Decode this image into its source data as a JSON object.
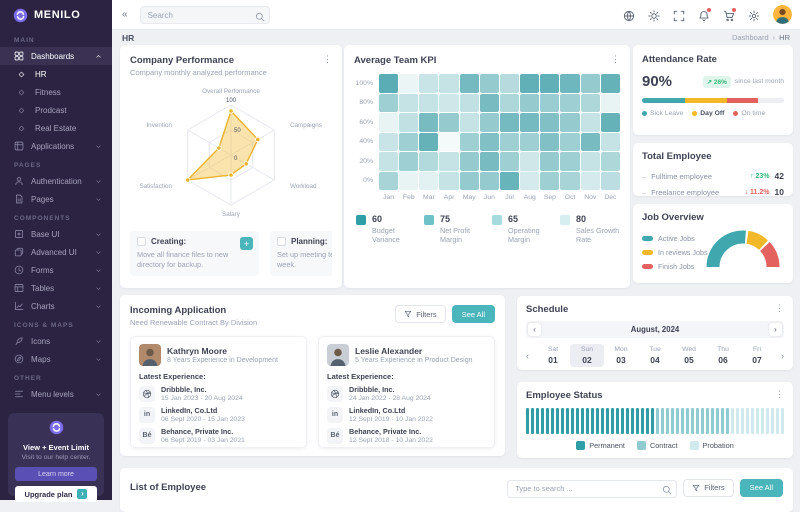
{
  "brand": {
    "name": "MENILO"
  },
  "topbar": {
    "collapse_icon": "«",
    "search_placeholder": "Search",
    "icons": [
      {
        "name": "language-icon",
        "badge": false
      },
      {
        "name": "theme-sun-icon",
        "badge": false
      },
      {
        "name": "fullscreen-icon",
        "badge": false
      },
      {
        "name": "notifications-bell-icon",
        "badge": true
      },
      {
        "name": "cart-icon",
        "badge": true
      },
      {
        "name": "settings-gear-icon",
        "badge": false
      }
    ]
  },
  "breadcrumb": {
    "page_title": "HR",
    "trail": [
      "Dashboard",
      "HR"
    ]
  },
  "sidebar": {
    "sections": [
      {
        "title": "MAIN",
        "items": [
          {
            "label": "Dashboards",
            "icon": "grid-icon",
            "active": true,
            "chevron": "up"
          },
          {
            "label": "HR",
            "icon": "diamond-icon",
            "sub": true,
            "active": true
          },
          {
            "label": "Fitness",
            "icon": "diamond-icon",
            "sub": true
          },
          {
            "label": "Prodcast",
            "icon": "diamond-icon",
            "sub": true
          },
          {
            "label": "Real Estate",
            "icon": "diamond-icon",
            "sub": true
          },
          {
            "label": "Applications",
            "icon": "apps-icon",
            "chevron": "down"
          }
        ]
      },
      {
        "title": "PAGES",
        "items": [
          {
            "label": "Authentication",
            "icon": "user-icon",
            "chevron": "down"
          },
          {
            "label": "Pages",
            "icon": "file-icon",
            "chevron": "down"
          }
        ]
      },
      {
        "title": "COMPONENTS",
        "items": [
          {
            "label": "Base UI",
            "icon": "box-icon",
            "chevron": "down"
          },
          {
            "label": "Advanced UI",
            "icon": "layers-icon",
            "chevron": "down"
          },
          {
            "label": "Forms",
            "icon": "clock-icon",
            "chevron": "down"
          },
          {
            "label": "Tables",
            "icon": "table-icon",
            "chevron": "down"
          },
          {
            "label": "Charts",
            "icon": "chart-icon",
            "chevron": "down"
          }
        ]
      },
      {
        "title": "ICONS & MAPS",
        "items": [
          {
            "label": "Icons",
            "icon": "feather-icon",
            "chevron": "down"
          },
          {
            "label": "Maps",
            "icon": "compass-icon",
            "chevron": "down"
          }
        ]
      },
      {
        "title": "OTHER",
        "items": [
          {
            "label": "Menu levels",
            "icon": "menu-levels-icon",
            "chevron": "down"
          }
        ]
      }
    ],
    "promo": {
      "title": "View + Event Limit",
      "subtitle": "Visit to our help center.",
      "learn_more": "Learn more",
      "upgrade": "Upgrade plan"
    }
  },
  "performance": {
    "title": "Company Performance",
    "subtitle": "Company monthly analyzed performance",
    "chart": {
      "type": "radar",
      "axes": [
        "Overall Performance",
        "Campaigns",
        "Workload",
        "Salary",
        "Satisfaction",
        "Invention"
      ],
      "values": [
        88,
        62,
        35,
        40,
        100,
        28
      ],
      "max": 100,
      "scale_labels": [
        "100",
        "50",
        "0"
      ],
      "line_color": "#eab42c",
      "fill_color": "rgba(246,194,74,0.45)"
    },
    "tasks": [
      {
        "label": "Creating:",
        "text": "Move all finance files to new directory for backup.",
        "has_add": true
      },
      {
        "label": "Planning:",
        "text": "Set up meeting team for next week.",
        "has_add": false
      }
    ]
  },
  "team_kpi": {
    "title": "Average Team KPI",
    "chart": {
      "type": "heatmap",
      "x": [
        "Jan",
        "Feb",
        "Mar",
        "Apr",
        "May",
        "Jun",
        "Jul",
        "Aug",
        "Sep",
        "Oct",
        "Nov",
        "Dec"
      ],
      "y": [
        "100%",
        "80%",
        "60%",
        "40%",
        "20%",
        "0%"
      ],
      "base_color": "62,159,168",
      "values": [
        [
          0.85,
          0.1,
          0.28,
          0.3,
          0.72,
          0.55,
          0.38,
          0.82,
          0.82,
          0.75,
          0.55,
          0.8
        ],
        [
          0.5,
          0.3,
          0.3,
          0.25,
          0.32,
          0.7,
          0.42,
          0.55,
          0.52,
          0.5,
          0.42,
          0.12
        ],
        [
          0.12,
          0.32,
          0.7,
          0.55,
          0.3,
          0.55,
          0.72,
          0.72,
          0.65,
          0.55,
          0.3,
          0.8
        ],
        [
          0.28,
          0.5,
          0.8,
          0.06,
          0.5,
          0.65,
          0.5,
          0.5,
          0.65,
          0.5,
          0.7,
          0.3
        ],
        [
          0.3,
          0.5,
          0.4,
          0.3,
          0.55,
          0.7,
          0.5,
          0.25,
          0.55,
          0.5,
          0.3,
          0.42
        ],
        [
          0.45,
          0.12,
          0.15,
          0.3,
          0.55,
          0.55,
          0.78,
          0.22,
          0.5,
          0.45,
          0.22,
          0.35
        ]
      ]
    },
    "stats": [
      {
        "value": "60",
        "label": "Budget Variance",
        "color": "#2f9ea6"
      },
      {
        "value": "75",
        "label": "Net Profit Margin",
        "color": "#6fc2c8"
      },
      {
        "value": "65",
        "label": "Operating Margin",
        "color": "#a5dbdf"
      },
      {
        "value": "80",
        "label": "Sales Growth Rate",
        "color": "#d6eef0"
      }
    ]
  },
  "attendance": {
    "title": "Attendance Rate",
    "rate": "90%",
    "delta": "↗ 26%",
    "delta_note": "since last month",
    "segments": [
      {
        "name": "Sick Leave",
        "color": "#3fa7ad",
        "pct": 30,
        "em": false
      },
      {
        "name": "Day Off",
        "color": "#f2b827",
        "pct": 30,
        "em": true
      },
      {
        "name": "On time",
        "color": "#e3615f",
        "pct": 22,
        "em": false
      }
    ],
    "rest_color": "#eceef2"
  },
  "total_employee": {
    "title": "Total Employee",
    "rows": [
      {
        "label": "Fulltime employee",
        "dir": "up",
        "arrow": "↑",
        "delta": "23%",
        "value": "42"
      },
      {
        "label": "Freelance employee",
        "dir": "down",
        "arrow": "↓",
        "delta": "11.2%",
        "value": "10"
      }
    ]
  },
  "job_overview": {
    "title": "Job Overview",
    "chart": {
      "type": "gauge",
      "segments": [
        {
          "label": "Active Jobs",
          "color": "#3fa7ad",
          "pct": 55
        },
        {
          "label": "In reviews Jobs",
          "color": "#f2b827",
          "pct": 20
        },
        {
          "label": "Finish Jobs",
          "color": "#e3615f",
          "pct": 25
        }
      ]
    }
  },
  "incoming": {
    "title": "Incoming Application",
    "subtitle": "Need Renewable Contract By Division",
    "filters_label": "Filters",
    "see_all_label": "See All",
    "latest_label": "Latest Experience:",
    "applicants": [
      {
        "name": "Kathryn Moore",
        "role": "8 Years Experience in Development",
        "experience": [
          {
            "company": "Dribbble, Inc.",
            "dates": "15 Jan 2023 - 20 Aug 2024",
            "icon": "dribbble-icon"
          },
          {
            "company": "LinkedIn, Co.Ltd",
            "dates": "06 Sept 2020 - 15 Jan 2023",
            "icon": "linkedin-icon",
            "glyph": "in"
          },
          {
            "company": "Behance, Private Inc.",
            "dates": "06 Sept 2019 - 03 Jan 2021",
            "icon": "behance-icon",
            "glyph": "Bé"
          }
        ]
      },
      {
        "name": "Leslie Alexander",
        "role": "5 Years Experience in Product Design",
        "experience": [
          {
            "company": "Dribbble, Inc.",
            "dates": "24 Jan 2022 - 28 Aug 2024",
            "icon": "dribbble-icon"
          },
          {
            "company": "LinkedIn, Co.Ltd",
            "dates": "12 Sept 2019 - 10 Jan 2022",
            "icon": "linkedin-icon",
            "glyph": "in"
          },
          {
            "company": "Behance, Private Inc.",
            "dates": "12 Sept 2018 - 10 Jan 2022",
            "icon": "behance-icon",
            "glyph": "Bé"
          }
        ]
      }
    ]
  },
  "schedule": {
    "title": "Schedule",
    "month": "August, 2024",
    "days": [
      {
        "dow": "Sat",
        "date": "01",
        "selected": false
      },
      {
        "dow": "Sun",
        "date": "02",
        "selected": true
      },
      {
        "dow": "Mon",
        "date": "03",
        "selected": false
      },
      {
        "dow": "Tue",
        "date": "04",
        "selected": false
      },
      {
        "dow": "Wed",
        "date": "05",
        "selected": false
      },
      {
        "dow": "Thu",
        "date": "06",
        "selected": false
      },
      {
        "dow": "Fri",
        "date": "07",
        "selected": false
      }
    ]
  },
  "employee_status": {
    "title": "Employee Status",
    "groups": [
      {
        "label": "Permanent",
        "color": "#2f9ea6",
        "count": 26
      },
      {
        "label": "Contract",
        "color": "#8fccd1",
        "count": 15
      },
      {
        "label": "Probation",
        "color": "#cfe9ec",
        "count": 13
      }
    ]
  },
  "employee_list": {
    "title": "List of Employee",
    "search_placeholder": "Type to search ...",
    "filters_label": "Filters",
    "see_all_label": "See All"
  }
}
